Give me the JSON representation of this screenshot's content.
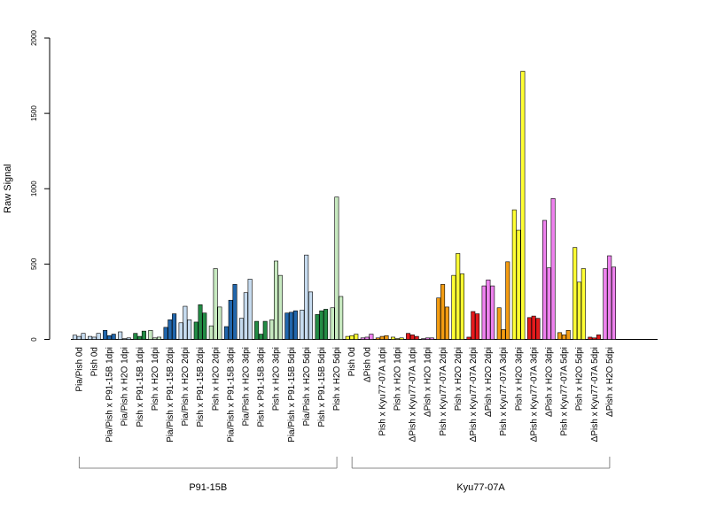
{
  "chart_data": {
    "type": "bar",
    "title": "",
    "xlabel": "",
    "ylabel": "Raw Signal",
    "ylim": [
      0,
      2000
    ],
    "yticks": [
      0,
      500,
      1000,
      1500,
      2000
    ],
    "grid": false,
    "bar_border": "#000000",
    "categories": [
      "Pia/Pish 0d",
      "Pish 0d",
      "Pia/Pish x P91-15B 1dpi",
      "Pia/Pish x H2O 1dpi",
      "Pish x P91-15B 1dpi",
      "Pish x H2O 1dpi",
      "Pia/Pish x P91-15B 2dpi",
      "Pia/Pish x H2O 2dpi",
      "Pish x P91-15B 2dpi",
      "Pish x H2O 2dpi",
      "Pia/Pish x P91-15B 3dpi",
      "Pia/Pish x H2O 3dpi",
      "Pish x P91-15B 3dpi",
      "Pish x H2O 3dpi",
      "Pia/Pish x P91-15B 5dpi",
      "Pia/Pish x H2O 5dpi",
      "Pish x P91-15B 5dpi",
      "Pish x H2O 5dpi",
      "Pish 0d",
      "ΔPish 0d",
      "Pish x Kyu77-07A 1dpi",
      "Pish x H2O 1dpi",
      "ΔPish x Kyu77-07A 1dpi",
      "ΔPish x H2O 1dpi",
      "Pish x Kyu77-07A 2dpi",
      "Pish x H2O 2dpi",
      "ΔPish x Kyu77-07A 2dpi",
      "ΔPish x H2O 2dpi",
      "Pish x Kyu77-07A 3dpi",
      "Pish x H2O 3dpi",
      "ΔPish x Kyu77-07A 3dpi",
      "ΔPish x H2O 3dpi",
      "Pish x Kyu77-07A 5dpi",
      "Pish x H2O 5dpi",
      "ΔPish x Kyu77-07A 5dpi",
      "ΔPish x H2O 5dpi"
    ],
    "colors": [
      "#c6dbef",
      "#c6dbef",
      "#2166ac",
      "#c6dbef",
      "#238b45",
      "#c7e9c0",
      "#2166ac",
      "#c6dbef",
      "#238b45",
      "#c7e9c0",
      "#2166ac",
      "#c6dbef",
      "#238b45",
      "#c7e9c0",
      "#2166ac",
      "#c6dbef",
      "#238b45",
      "#c7e9c0",
      "#ffff33",
      "#ee82ee",
      "#f39c12",
      "#ffff33",
      "#e41a1c",
      "#ee82ee",
      "#f39c12",
      "#ffff33",
      "#e41a1c",
      "#ee82ee",
      "#f39c12",
      "#ffff33",
      "#e41a1c",
      "#ee82ee",
      "#f39c12",
      "#ffff33",
      "#e41a1c",
      "#ee82ee"
    ],
    "values": [
      [
        28,
        20,
        40
      ],
      [
        20,
        15,
        40
      ],
      [
        60,
        25,
        35
      ],
      [
        50,
        5,
        10
      ],
      [
        40,
        20,
        55
      ],
      [
        60,
        10,
        15
      ],
      [
        80,
        130,
        170
      ],
      [
        110,
        220,
        130
      ],
      [
        115,
        230,
        175
      ],
      [
        90,
        470,
        215
      ],
      [
        85,
        260,
        365
      ],
      [
        140,
        310,
        400
      ],
      [
        120,
        35,
        120
      ],
      [
        130,
        520,
        425
      ],
      [
        175,
        180,
        190
      ],
      [
        195,
        560,
        315
      ],
      [
        165,
        190,
        200
      ],
      [
        210,
        945,
        285
      ],
      [
        20,
        25,
        35
      ],
      [
        10,
        15,
        35
      ],
      [
        10,
        20,
        25
      ],
      [
        15,
        5,
        10
      ],
      [
        40,
        30,
        20
      ],
      [
        5,
        10,
        10
      ],
      [
        275,
        365,
        215
      ],
      [
        425,
        570,
        435
      ],
      [
        15,
        185,
        170
      ],
      [
        355,
        395,
        355
      ],
      [
        210,
        65,
        515
      ],
      [
        860,
        725,
        1780
      ],
      [
        145,
        155,
        140
      ],
      [
        790,
        475,
        935
      ],
      [
        45,
        30,
        60
      ],
      [
        610,
        380,
        470
      ],
      [
        15,
        10,
        30
      ],
      [
        470,
        555,
        480
      ]
    ],
    "groups": [
      {
        "label": "P91-15B",
        "from": 0,
        "to": 17
      },
      {
        "label": "Kyu77-07A",
        "from": 18,
        "to": 35
      }
    ]
  }
}
